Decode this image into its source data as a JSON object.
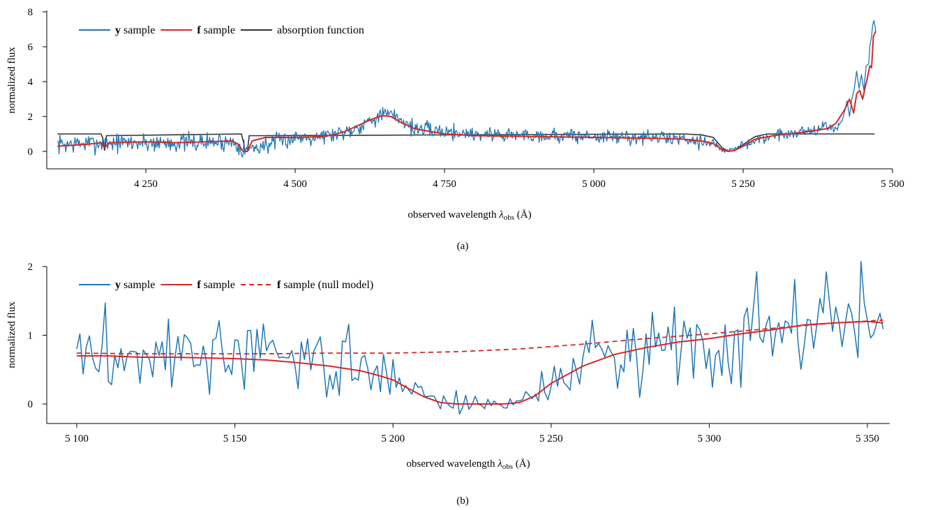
{
  "colors": {
    "y": "#1f77b4",
    "f": "#d62728",
    "absorption": "#333333"
  },
  "chart_data": [
    {
      "id": "a",
      "type": "line",
      "caption": "(a)",
      "xlabel_main": "observed wavelength ",
      "xlabel_symbol": "λ",
      "xlabel_sub": "obs",
      "xlabel_unit": " (Å)",
      "ylabel": "normalized flux",
      "xlim": [
        4090,
        5500
      ],
      "ylim": [
        -0.9,
        8
      ],
      "xticks": [
        4250,
        4500,
        4750,
        5000,
        5250,
        5500
      ],
      "xtick_labels": [
        "4 250",
        "4 500",
        "4 750",
        "5 000",
        "5 250",
        "5 500"
      ],
      "yticks": [
        0,
        2,
        4,
        6,
        8
      ],
      "ytick_labels": [
        "0",
        "2",
        "4",
        "6",
        "8"
      ],
      "legend_position": "top-left",
      "legend": [
        {
          "bold": "y",
          "rest": " sample",
          "color": "#1f77b4",
          "dash": false
        },
        {
          "bold": "f",
          "rest": " sample",
          "color": "#d62728",
          "dash": false
        },
        {
          "bold": "",
          "rest": "absorption function",
          "color": "#333333",
          "dash": false
        }
      ],
      "series": [
        {
          "key": "absorption",
          "color": "#333333",
          "dash": false,
          "width": 1.6,
          "x": [
            4102,
            4175,
            4178,
            4181,
            4184,
            4410,
            4413,
            4416,
            4420,
            4423,
            5150,
            5180,
            5200,
            5215,
            5225,
            5235,
            5250,
            5270,
            5290,
            5470
          ],
          "y": [
            1.0,
            1.0,
            0.75,
            0.05,
            0.9,
            1.0,
            0.6,
            0.0,
            0.0,
            0.9,
            1.0,
            0.95,
            0.8,
            0.2,
            0.0,
            0.05,
            0.4,
            0.85,
            1.0,
            1.0
          ]
        },
        {
          "key": "f",
          "color": "#d62728",
          "dash": false,
          "width": 2.0,
          "x": [
            4102,
            4150,
            4175,
            4181,
            4188,
            4200,
            4250,
            4300,
            4350,
            4395,
            4405,
            4413,
            4420,
            4428,
            4450,
            4500,
            4550,
            4580,
            4600,
            4625,
            4645,
            4660,
            4675,
            4700,
            4750,
            4800,
            4900,
            5000,
            5100,
            5150,
            5180,
            5200,
            5215,
            5225,
            5235,
            5250,
            5270,
            5300,
            5350,
            5390,
            5405,
            5420,
            5428,
            5435,
            5440,
            5445,
            5450,
            5455,
            5458,
            5462,
            5465,
            5468,
            5472
          ],
          "y": [
            0.3,
            0.4,
            0.5,
            0.2,
            0.5,
            0.5,
            0.55,
            0.5,
            0.55,
            0.6,
            0.4,
            0.0,
            0.0,
            0.6,
            0.8,
            0.8,
            0.85,
            1.1,
            1.4,
            1.8,
            2.05,
            2.0,
            1.7,
            1.3,
            1.0,
            0.9,
            0.85,
            0.8,
            0.75,
            0.7,
            0.6,
            0.45,
            0.1,
            0.0,
            0.05,
            0.3,
            0.7,
            0.9,
            1.1,
            1.3,
            1.6,
            2.4,
            3.0,
            2.2,
            3.3,
            3.5,
            3.0,
            3.8,
            4.2,
            4.9,
            4.8,
            6.6,
            6.9
          ]
        }
      ],
      "noisy": {
        "key": "y",
        "color": "#1f77b4",
        "width": 1.3,
        "x_start": 4102,
        "x_end": 5410,
        "step": 1.4,
        "seed": 7,
        "base_x": [
          4102,
          4200,
          4300,
          4400,
          4413,
          4420,
          4500,
          4560,
          4600,
          4630,
          4650,
          4670,
          4700,
          4800,
          5000,
          5150,
          5200,
          5215,
          5230,
          5250,
          5300,
          5400,
          5410
        ],
        "base_y": [
          0.4,
          0.5,
          0.5,
          0.55,
          0.1,
          0.1,
          0.8,
          0.95,
          1.3,
          1.9,
          2.15,
          2.0,
          1.3,
          1.0,
          0.85,
          0.75,
          0.5,
          0.05,
          0.05,
          0.4,
          0.9,
          1.4,
          1.4
        ],
        "amp_x": [
          4102,
          4400,
          4500,
          5180,
          5210,
          5240,
          5270,
          5410
        ],
        "amp_y": [
          0.4,
          0.4,
          0.35,
          0.3,
          0.1,
          0.1,
          0.25,
          0.3
        ],
        "tail_x": [
          5410,
          5416,
          5420,
          5424,
          5428,
          5432,
          5436,
          5440,
          5444,
          5448,
          5452,
          5456,
          5460,
          5462,
          5465,
          5467,
          5469,
          5471,
          5472
        ],
        "tail_y": [
          1.5,
          1.8,
          2.3,
          2.9,
          2.0,
          3.0,
          3.6,
          4.6,
          3.6,
          4.4,
          3.5,
          4.9,
          5.0,
          6.0,
          6.6,
          7.3,
          7.5,
          7.1,
          6.8
        ]
      }
    },
    {
      "id": "b",
      "type": "line",
      "caption": "(b)",
      "xlabel_main": "observed wavelength ",
      "xlabel_symbol": "λ",
      "xlabel_sub": "obs",
      "xlabel_unit": " (Å)",
      "ylabel": "normalized flux",
      "xlim": [
        5090,
        5360
      ],
      "ylim": [
        -0.3,
        2
      ],
      "xticks": [
        5100,
        5150,
        5200,
        5250,
        5300,
        5350
      ],
      "xtick_labels": [
        "5 100",
        "5 150",
        "5 200",
        "5 250",
        "5 300",
        "5 350"
      ],
      "yticks": [
        0,
        1,
        2
      ],
      "ytick_labels": [
        "0",
        "1",
        "2"
      ],
      "legend_position": "top-left",
      "legend": [
        {
          "bold": "y",
          "rest": " sample",
          "color": "#1f77b4",
          "dash": false
        },
        {
          "bold": "f",
          "rest": " sample",
          "color": "#d62728",
          "dash": false
        },
        {
          "bold": "f",
          "rest": " sample (null model)",
          "color": "#d62728",
          "dash": true
        }
      ],
      "series": [
        {
          "key": "f",
          "color": "#d62728",
          "dash": false,
          "width": 2.0,
          "x": [
            5100,
            5110,
            5120,
            5130,
            5140,
            5150,
            5160,
            5170,
            5180,
            5190,
            5195,
            5200,
            5205,
            5210,
            5215,
            5220,
            5225,
            5230,
            5235,
            5240,
            5245,
            5250,
            5260,
            5270,
            5280,
            5290,
            5300,
            5310,
            5320,
            5330,
            5340,
            5350,
            5355
          ],
          "y": [
            0.7,
            0.7,
            0.68,
            0.68,
            0.67,
            0.66,
            0.64,
            0.6,
            0.55,
            0.48,
            0.42,
            0.35,
            0.22,
            0.1,
            0.02,
            0.0,
            0.0,
            0.0,
            0.0,
            0.02,
            0.12,
            0.3,
            0.55,
            0.72,
            0.82,
            0.9,
            0.95,
            1.02,
            1.08,
            1.15,
            1.18,
            1.2,
            1.18
          ]
        },
        {
          "key": "f_null",
          "color": "#d62728",
          "dash": true,
          "width": 1.8,
          "x": [
            5100,
            5120,
            5140,
            5160,
            5180,
            5200,
            5220,
            5240,
            5260,
            5280,
            5300,
            5320,
            5340,
            5355
          ],
          "y": [
            0.74,
            0.73,
            0.73,
            0.73,
            0.74,
            0.74,
            0.76,
            0.8,
            0.87,
            0.95,
            1.02,
            1.1,
            1.18,
            1.22
          ]
        }
      ],
      "noisy": {
        "key": "y",
        "color": "#1f77b4",
        "width": 1.5,
        "x_start": 5100,
        "x_end": 5355,
        "step": 1.0,
        "seed": 3,
        "base_x": [
          5100,
          5120,
          5150,
          5175,
          5185,
          5195,
          5200,
          5205,
          5210,
          5215,
          5220,
          5230,
          5238,
          5245,
          5250,
          5260,
          5270,
          5290,
          5310,
          5330,
          5355
        ],
        "base_y": [
          0.7,
          0.72,
          0.7,
          0.65,
          0.55,
          0.45,
          0.38,
          0.3,
          0.18,
          0.05,
          0.0,
          0.0,
          0.02,
          0.12,
          0.35,
          0.6,
          0.75,
          0.9,
          1.05,
          1.2,
          1.2
        ],
        "amp_x": [
          5100,
          5190,
          5205,
          5240,
          5255,
          5270,
          5300,
          5355
        ],
        "amp_y": [
          0.45,
          0.35,
          0.15,
          0.1,
          0.3,
          0.4,
          0.5,
          0.55
        ],
        "tail_x": [],
        "tail_y": []
      }
    }
  ]
}
